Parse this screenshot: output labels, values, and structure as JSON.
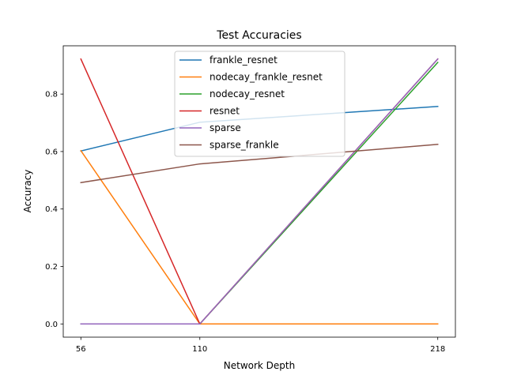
{
  "chart_data": {
    "type": "line",
    "title": "Test Accuracies",
    "xlabel": "Network Depth",
    "ylabel": "Accuracy",
    "x": [
      56,
      110,
      218
    ],
    "xticks": [
      "56",
      "110",
      "218"
    ],
    "yticks": [
      "0.0",
      "0.2",
      "0.4",
      "0.6",
      "0.8"
    ],
    "xlim": [
      48,
      226
    ],
    "ylim": [
      -0.046,
      0.968
    ],
    "grid": false,
    "legend_position": "upper-center",
    "series": [
      {
        "name": "frankle_resnet",
        "color": "#1f77b4",
        "values": [
          0.602,
          0.702,
          0.757
        ]
      },
      {
        "name": "nodecay_frankle_resnet",
        "color": "#ff7f0e",
        "values": [
          0.603,
          0.0,
          0.0
        ]
      },
      {
        "name": "nodecay_resnet",
        "color": "#2ca02c",
        "values": [
          0.0,
          0.0,
          0.91
        ]
      },
      {
        "name": "resnet",
        "color": "#d62728",
        "values": [
          0.922,
          0.0,
          0.922
        ]
      },
      {
        "name": "sparse",
        "color": "#9467bd",
        "values": [
          0.0,
          0.0,
          0.922
        ]
      },
      {
        "name": "sparse_frankle",
        "color": "#8c564b",
        "values": [
          0.492,
          0.557,
          0.625
        ]
      }
    ]
  }
}
